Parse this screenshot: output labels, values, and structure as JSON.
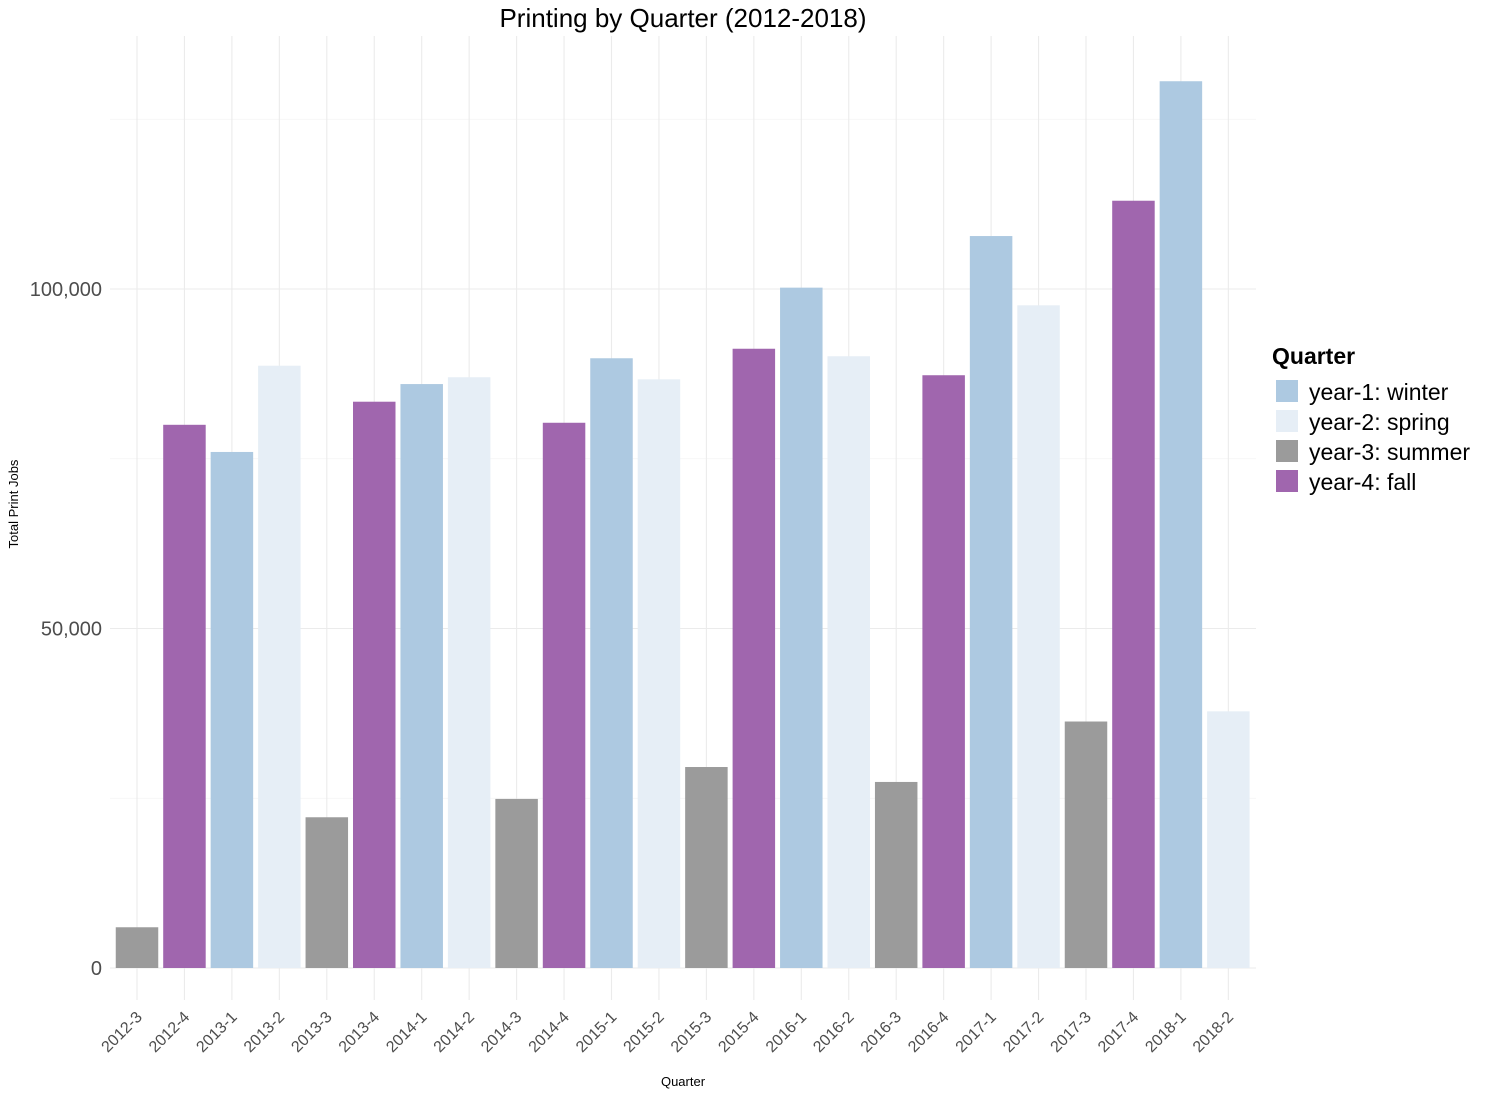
{
  "chart_data": {
    "type": "bar",
    "title": "Printing by Quarter (2012-2018)",
    "xlabel": "Quarter",
    "ylabel": "Total Print Jobs",
    "ylim": [
      0,
      130000
    ],
    "y_ticks": [
      0,
      50000,
      100000
    ],
    "y_tick_labels": [
      "0",
      "50,000",
      "100,000"
    ],
    "grid": true,
    "legend": {
      "title": "Quarter",
      "position": "right",
      "entries": [
        {
          "key": "winter",
          "label": "year-1: winter",
          "color": "#adc9e1"
        },
        {
          "key": "spring",
          "label": "year-2: spring",
          "color": "#e6eef6"
        },
        {
          "key": "summer",
          "label": "year-3: summer",
          "color": "#9b9b9b"
        },
        {
          "key": "fall",
          "label": "year-4: fall",
          "color": "#a066ae"
        }
      ]
    },
    "categories": [
      "2012-3",
      "2012-4",
      "2013-1",
      "2013-2",
      "2013-3",
      "2013-4",
      "2014-1",
      "2014-2",
      "2014-3",
      "2014-4",
      "2015-1",
      "2015-2",
      "2015-3",
      "2015-4",
      "2016-1",
      "2016-2",
      "2016-3",
      "2016-4",
      "2017-1",
      "2017-2",
      "2017-3",
      "2017-4",
      "2018-1",
      "2018-2"
    ],
    "values": [
      6000,
      80000,
      76000,
      88700,
      22200,
      83400,
      86000,
      87000,
      24900,
      80300,
      89800,
      86700,
      29600,
      91200,
      100200,
      90100,
      27400,
      87300,
      107800,
      97600,
      36300,
      113000,
      130600,
      37800
    ],
    "groups": [
      "summer",
      "fall",
      "winter",
      "spring",
      "summer",
      "fall",
      "winter",
      "spring",
      "summer",
      "fall",
      "winter",
      "spring",
      "summer",
      "fall",
      "winter",
      "spring",
      "summer",
      "fall",
      "winter",
      "spring",
      "summer",
      "fall",
      "winter",
      "spring"
    ]
  }
}
